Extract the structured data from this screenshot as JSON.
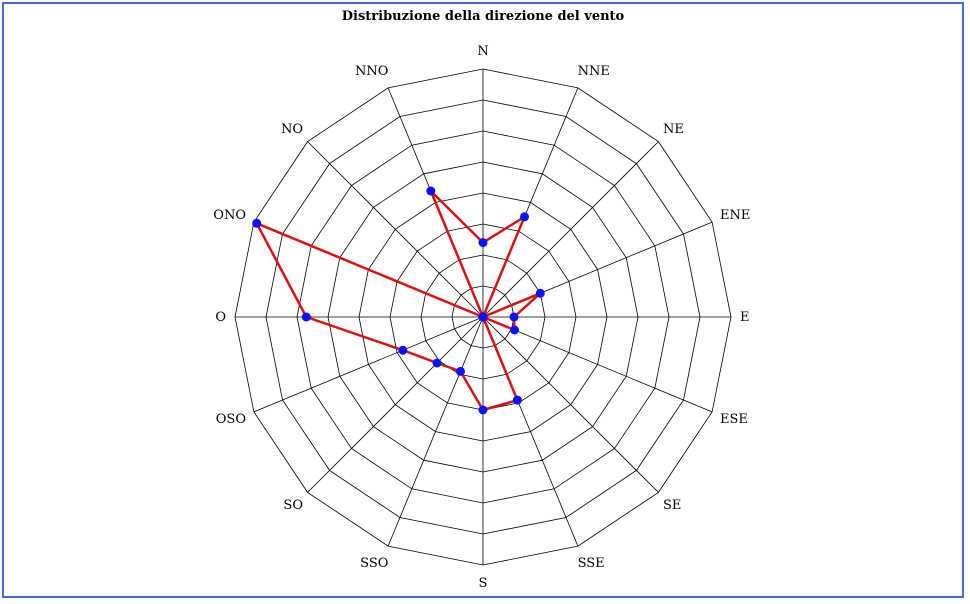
{
  "chart_data": {
    "type": "radar",
    "title": "Distribuzione della direzione del vento",
    "categories": [
      "N",
      "NNE",
      "NE",
      "ENE",
      "E",
      "ESE",
      "SE",
      "SSE",
      "S",
      "SSO",
      "SO",
      "OSO",
      "O",
      "ONO",
      "NO",
      "NNO"
    ],
    "values": [
      2.4,
      3.5,
      0.0,
      2.0,
      1.0,
      1.1,
      0.0,
      2.9,
      3.0,
      1.9,
      2.1,
      2.8,
      5.7,
      7.9,
      0.0,
      4.4
    ],
    "rlim": [
      0,
      8
    ],
    "ring_step": 1,
    "grid": true,
    "colors": {
      "line": "#e01010",
      "marker": "#0a10ff",
      "grid": "#000000"
    }
  }
}
